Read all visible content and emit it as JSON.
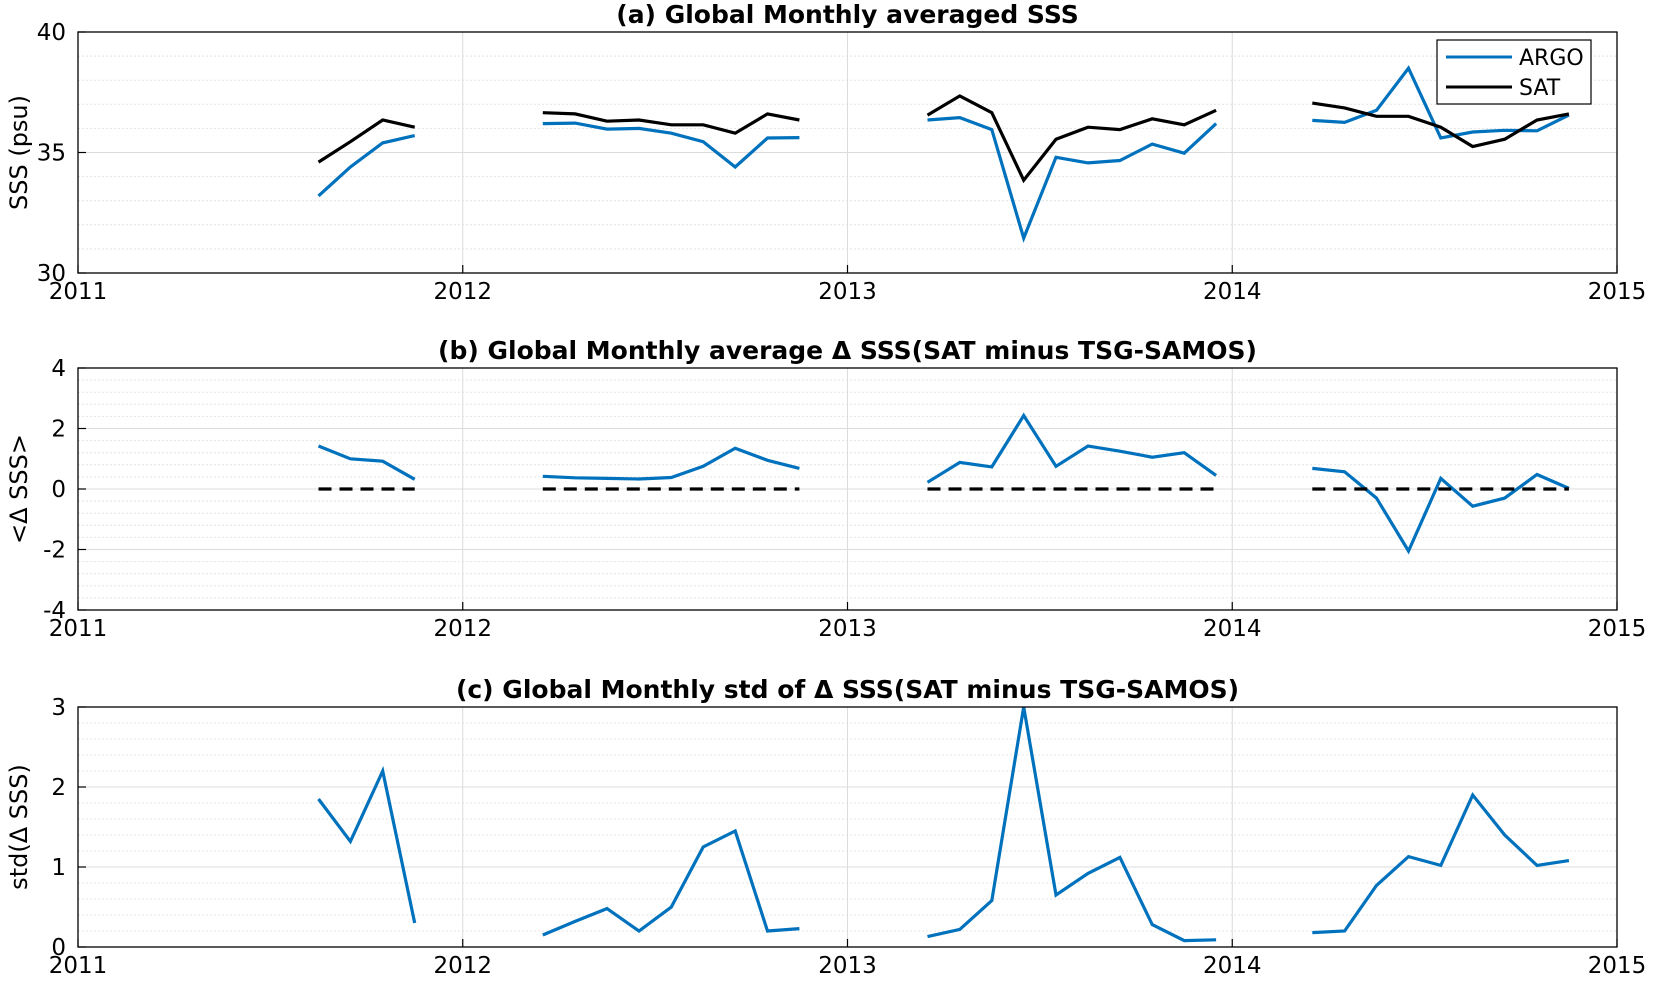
{
  "colors": {
    "argo": "#0072BD",
    "sat": "#000000",
    "grid": "#d9d9d9",
    "axis": "#000000"
  },
  "chart_data": [
    {
      "type": "line",
      "title": "(a) Global Monthly averaged SSS",
      "ylabel": "SSS (psu)",
      "xlim": [
        2011,
        2015
      ],
      "ylim": [
        30,
        40
      ],
      "x_ticks": [
        2011,
        2012,
        2013,
        2014,
        2015
      ],
      "x_tick_labels": [
        "2011",
        "2012",
        "2013",
        "2014",
        "2015"
      ],
      "y_ticks": [
        30,
        35,
        40
      ],
      "y_tick_labels": [
        "30",
        "35",
        "40"
      ],
      "grid": true,
      "legend": "top-right",
      "series": [
        {
          "name": "ARGO",
          "color": "#0072BD",
          "segments": [
            [
              [
                2011.625,
                33.2
              ],
              [
                2011.708,
                34.4
              ],
              [
                2011.792,
                35.4
              ],
              [
                2011.875,
                35.7
              ]
            ],
            [
              [
                2012.208,
                36.2
              ],
              [
                2012.292,
                36.22
              ],
              [
                2012.375,
                35.97
              ],
              [
                2012.458,
                36.0
              ],
              [
                2012.542,
                35.8
              ],
              [
                2012.625,
                35.45
              ],
              [
                2012.708,
                34.4
              ],
              [
                2012.792,
                35.6
              ],
              [
                2012.875,
                35.62
              ]
            ],
            [
              [
                2013.208,
                36.35
              ],
              [
                2013.292,
                36.45
              ],
              [
                2013.375,
                35.95
              ],
              [
                2013.458,
                31.45
              ],
              [
                2013.542,
                34.8
              ],
              [
                2013.625,
                34.57
              ],
              [
                2013.708,
                34.67
              ],
              [
                2013.792,
                35.35
              ],
              [
                2013.875,
                34.97
              ],
              [
                2013.958,
                36.2
              ]
            ],
            [
              [
                2014.208,
                36.33
              ],
              [
                2014.292,
                36.25
              ],
              [
                2014.375,
                36.75
              ],
              [
                2014.458,
                38.5
              ],
              [
                2014.542,
                35.6
              ],
              [
                2014.625,
                35.85
              ],
              [
                2014.708,
                35.92
              ],
              [
                2014.792,
                35.9
              ],
              [
                2014.875,
                36.55
              ]
            ]
          ]
        },
        {
          "name": "SAT",
          "color": "#000000",
          "segments": [
            [
              [
                2011.625,
                34.6
              ],
              [
                2011.708,
                35.45
              ],
              [
                2011.792,
                36.35
              ],
              [
                2011.875,
                36.05
              ]
            ],
            [
              [
                2012.208,
                36.65
              ],
              [
                2012.292,
                36.6
              ],
              [
                2012.375,
                36.3
              ],
              [
                2012.458,
                36.35
              ],
              [
                2012.542,
                36.15
              ],
              [
                2012.625,
                36.15
              ],
              [
                2012.708,
                35.8
              ],
              [
                2012.792,
                36.6
              ],
              [
                2012.875,
                36.35
              ]
            ],
            [
              [
                2013.208,
                36.55
              ],
              [
                2013.292,
                37.35
              ],
              [
                2013.375,
                36.65
              ],
              [
                2013.458,
                33.85
              ],
              [
                2013.542,
                35.55
              ],
              [
                2013.625,
                36.05
              ],
              [
                2013.708,
                35.95
              ],
              [
                2013.792,
                36.4
              ],
              [
                2013.875,
                36.15
              ],
              [
                2013.958,
                36.75
              ]
            ],
            [
              [
                2014.208,
                37.05
              ],
              [
                2014.292,
                36.85
              ],
              [
                2014.375,
                36.5
              ],
              [
                2014.458,
                36.5
              ],
              [
                2014.542,
                36.05
              ],
              [
                2014.625,
                35.25
              ],
              [
                2014.708,
                35.55
              ],
              [
                2014.792,
                36.35
              ],
              [
                2014.875,
                36.6
              ]
            ]
          ]
        }
      ]
    },
    {
      "type": "line",
      "title": "(b) Global Monthly average Δ SSS(SAT minus TSG-SAMOS)",
      "ylabel": "<Δ SSS>",
      "xlim": [
        2011,
        2015
      ],
      "ylim": [
        -4,
        4
      ],
      "x_ticks": [
        2011,
        2012,
        2013,
        2014,
        2015
      ],
      "x_tick_labels": [
        "2011",
        "2012",
        "2013",
        "2014",
        "2015"
      ],
      "y_ticks": [
        -4,
        -2,
        0,
        2,
        4
      ],
      "y_tick_labels": [
        "-4",
        "-2",
        "0",
        "2",
        "4"
      ],
      "grid": true,
      "series": [
        {
          "name": "",
          "color": "#0072BD",
          "segments": [
            [
              [
                2011.625,
                1.42
              ],
              [
                2011.708,
                1.0
              ],
              [
                2011.792,
                0.92
              ],
              [
                2011.875,
                0.32
              ]
            ],
            [
              [
                2012.208,
                0.42
              ],
              [
                2012.292,
                0.37
              ],
              [
                2012.375,
                0.35
              ],
              [
                2012.458,
                0.33
              ],
              [
                2012.542,
                0.38
              ],
              [
                2012.625,
                0.75
              ],
              [
                2012.708,
                1.35
              ],
              [
                2012.792,
                0.95
              ],
              [
                2012.875,
                0.68
              ]
            ],
            [
              [
                2013.208,
                0.22
              ],
              [
                2013.292,
                0.88
              ],
              [
                2013.375,
                0.73
              ],
              [
                2013.458,
                2.43
              ],
              [
                2013.542,
                0.75
              ],
              [
                2013.625,
                1.42
              ],
              [
                2013.708,
                1.25
              ],
              [
                2013.792,
                1.05
              ],
              [
                2013.875,
                1.2
              ],
              [
                2013.958,
                0.45
              ]
            ],
            [
              [
                2014.208,
                0.68
              ],
              [
                2014.292,
                0.57
              ],
              [
                2014.375,
                -0.3
              ],
              [
                2014.458,
                -2.05
              ],
              [
                2014.542,
                0.35
              ],
              [
                2014.625,
                -0.57
              ],
              [
                2014.708,
                -0.3
              ],
              [
                2014.792,
                0.48
              ],
              [
                2014.875,
                0.02
              ]
            ]
          ]
        },
        {
          "name": "",
          "color": "#000000",
          "dashed": true,
          "segments": [
            [
              [
                2011.625,
                0
              ],
              [
                2011.875,
                0
              ]
            ],
            [
              [
                2012.208,
                0
              ],
              [
                2012.875,
                0
              ]
            ],
            [
              [
                2013.208,
                0
              ],
              [
                2013.958,
                0
              ]
            ],
            [
              [
                2014.208,
                0
              ],
              [
                2014.875,
                0
              ]
            ]
          ]
        }
      ]
    },
    {
      "type": "line",
      "title": "(c) Global Monthly std of Δ SSS(SAT minus TSG-SAMOS)",
      "ylabel": "std(Δ SSS)",
      "xlim": [
        2011,
        2015
      ],
      "ylim": [
        0,
        3
      ],
      "x_ticks": [
        2011,
        2012,
        2013,
        2014,
        2015
      ],
      "x_tick_labels": [
        "2011",
        "2012",
        "2013",
        "2014",
        "2015"
      ],
      "y_ticks": [
        0,
        1,
        2,
        3
      ],
      "y_tick_labels": [
        "0",
        "1",
        "2",
        "3"
      ],
      "grid": true,
      "series": [
        {
          "name": "",
          "color": "#0072BD",
          "segments": [
            [
              [
                2011.625,
                1.85
              ],
              [
                2011.708,
                1.32
              ],
              [
                2011.792,
                2.2
              ],
              [
                2011.875,
                0.3
              ]
            ],
            [
              [
                2012.208,
                0.15
              ],
              [
                2012.292,
                0.32
              ],
              [
                2012.375,
                0.48
              ],
              [
                2012.458,
                0.2
              ],
              [
                2012.542,
                0.5
              ],
              [
                2012.625,
                1.25
              ],
              [
                2012.708,
                1.45
              ],
              [
                2012.792,
                0.2
              ],
              [
                2012.875,
                0.23
              ]
            ],
            [
              [
                2013.208,
                0.13
              ],
              [
                2013.292,
                0.22
              ],
              [
                2013.375,
                0.58
              ],
              [
                2013.458,
                3.0
              ],
              [
                2013.542,
                0.65
              ],
              [
                2013.625,
                0.92
              ],
              [
                2013.708,
                1.12
              ],
              [
                2013.792,
                0.28
              ],
              [
                2013.875,
                0.08
              ],
              [
                2013.958,
                0.09
              ]
            ],
            [
              [
                2014.208,
                0.18
              ],
              [
                2014.292,
                0.2
              ],
              [
                2014.375,
                0.77
              ],
              [
                2014.458,
                1.13
              ],
              [
                2014.542,
                1.02
              ],
              [
                2014.625,
                1.9
              ],
              [
                2014.708,
                1.4
              ],
              [
                2014.792,
                1.02
              ],
              [
                2014.875,
                1.08
              ]
            ]
          ]
        }
      ]
    }
  ]
}
